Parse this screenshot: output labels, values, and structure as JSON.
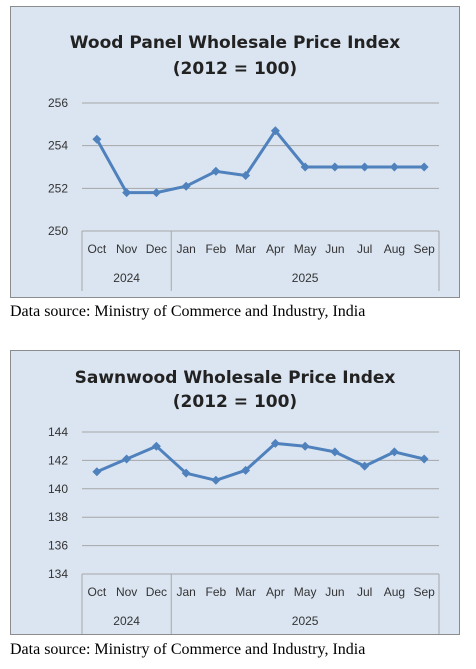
{
  "colors": {
    "panel_background": "#dbe5f1",
    "series_line": "#4f81bd",
    "gridline": "#a6a6a6"
  },
  "chart_data": [
    {
      "type": "line",
      "title": "Wood Panel Wholesale Price Index",
      "subtitle": "(2012 = 100)",
      "categories": [
        "Oct",
        "Nov",
        "Dec",
        "Jan",
        "Feb",
        "Mar",
        "Apr",
        "May",
        "Jun",
        "Jul",
        "Aug",
        "Sep"
      ],
      "year_groups": [
        {
          "label": "2024",
          "months": 3
        },
        {
          "label": "2025",
          "months": 9
        }
      ],
      "series": [
        {
          "values": [
            254.3,
            251.8,
            251.8,
            252.1,
            252.8,
            252.6,
            254.7,
            253.0,
            253.0,
            253.0,
            253.0,
            253.0
          ]
        }
      ],
      "ylim": [
        250,
        256
      ],
      "yticks": [
        250,
        252,
        254,
        256
      ],
      "grid": true,
      "source": "Data source: Ministry of Commerce and Industry, India"
    },
    {
      "type": "line",
      "title": "Sawnwood Wholesale Price Index",
      "subtitle": "(2012 = 100)",
      "categories": [
        "Oct",
        "Nov",
        "Dec",
        "Jan",
        "Feb",
        "Mar",
        "Apr",
        "May",
        "Jun",
        "Jul",
        "Aug",
        "Sep"
      ],
      "year_groups": [
        {
          "label": "2024",
          "months": 3
        },
        {
          "label": "2025",
          "months": 9
        }
      ],
      "series": [
        {
          "values": [
            141.2,
            142.1,
            143.0,
            141.1,
            140.6,
            141.3,
            143.2,
            143.0,
            142.6,
            141.6,
            142.6,
            142.1
          ]
        }
      ],
      "ylim": [
        134,
        144
      ],
      "yticks": [
        134,
        136,
        138,
        140,
        142,
        144
      ],
      "grid": true,
      "source": "Data source: Ministry of Commerce and Industry, India"
    }
  ]
}
